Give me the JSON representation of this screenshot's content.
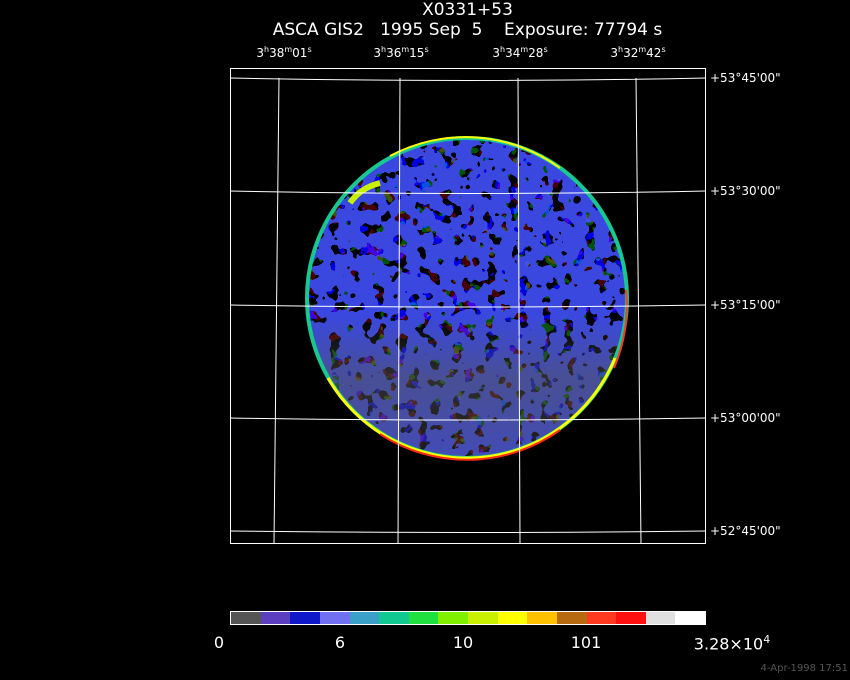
{
  "title": {
    "object": "X0331+53",
    "subtitle": "ASCA GIS2   1995 Sep  5    Exposure: 77794 s"
  },
  "ra_ticks": [
    {
      "h": "3",
      "m": "38",
      "s": "01"
    },
    {
      "h": "3",
      "m": "36",
      "s": "15"
    },
    {
      "h": "3",
      "m": "34",
      "s": "28"
    },
    {
      "h": "3",
      "m": "32",
      "s": "42"
    }
  ],
  "dec_ticks": [
    "+53°45'00\"",
    "+53°30'00\"",
    "+53°15'00\"",
    "+53°00'00\"",
    "+52°45'00\""
  ],
  "colorbar": {
    "colors": [
      "#555555",
      "#5b3fc0",
      "#0f18c8",
      "#7070f0",
      "#3aa0c8",
      "#10c890",
      "#20e040",
      "#80f000",
      "#c8f000",
      "#ffff00",
      "#ffc000",
      "#b86a10",
      "#ff3a20",
      "#ff1010",
      "#e0e0e0",
      "#ffffff"
    ],
    "labels": {
      "l0": "0",
      "l1": "6",
      "l2": "10",
      "l3": "101",
      "l4_mantissa": "3.28×10",
      "l4_exp": "4"
    }
  },
  "timestamp": "4-Apr-1998 17:51"
}
